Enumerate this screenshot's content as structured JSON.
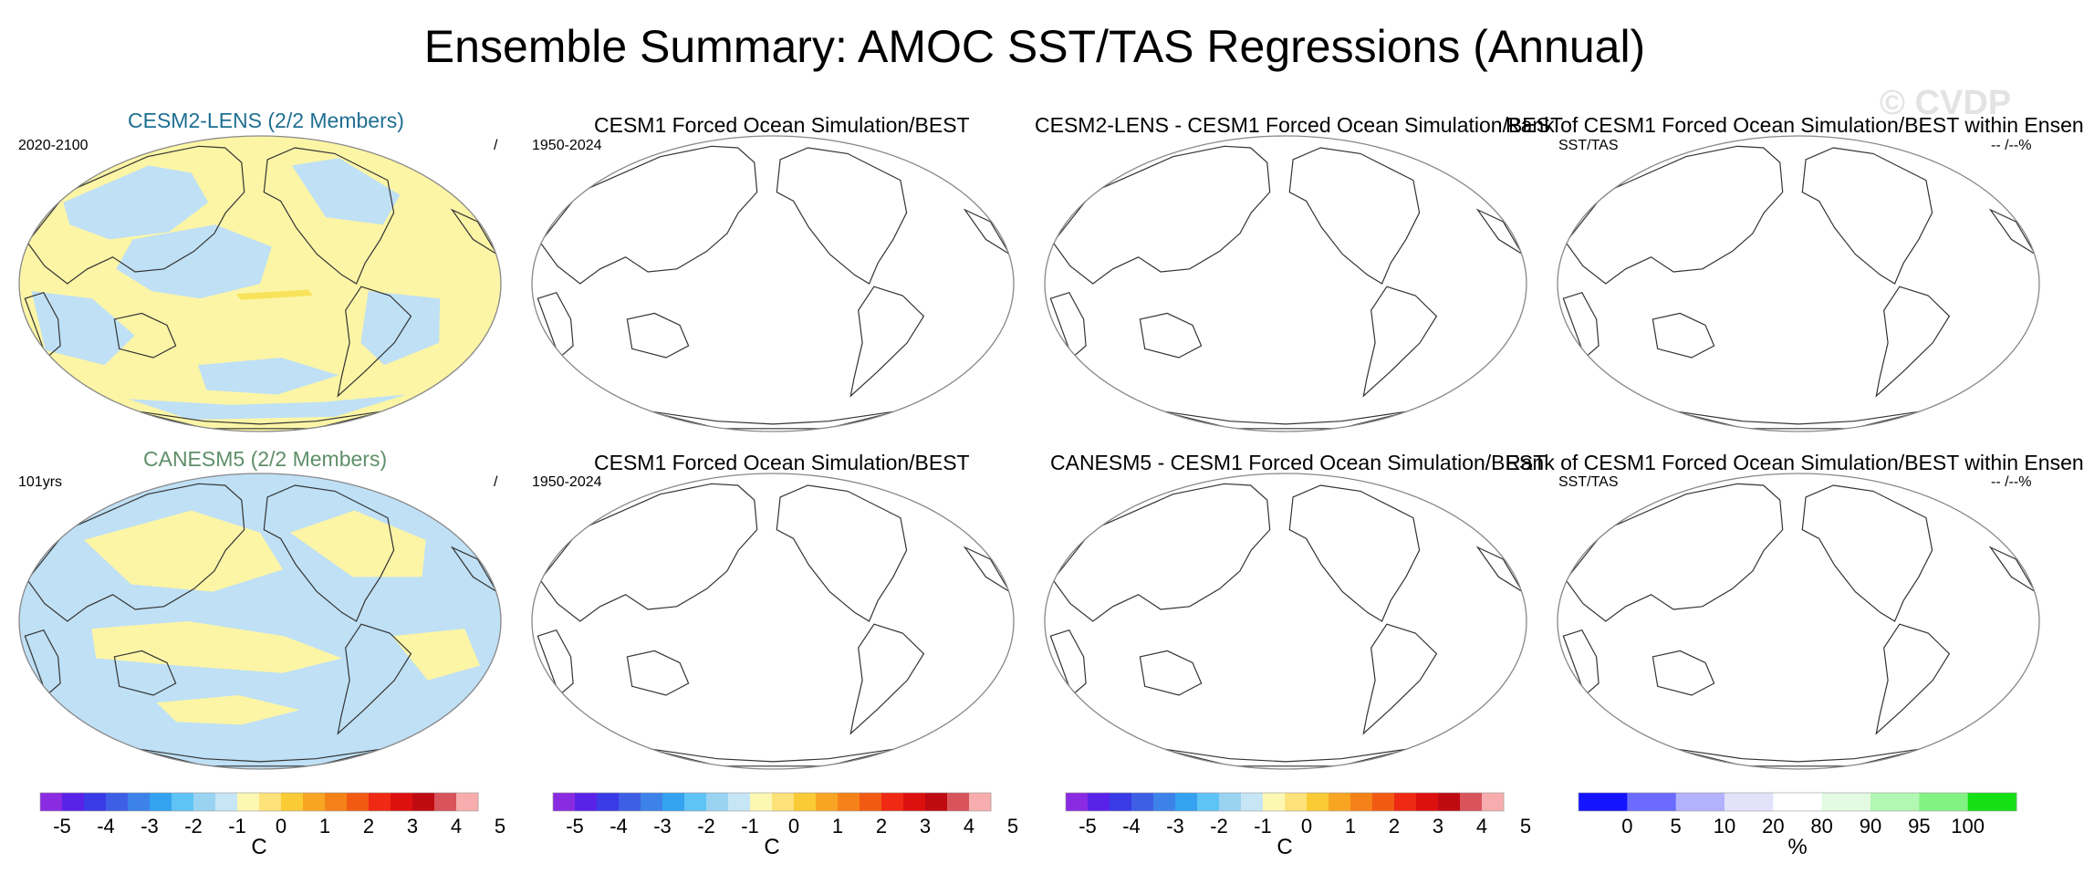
{
  "title": "Ensemble Summary: AMOC SST/TAS Regressions (Annual)",
  "watermark": "© CVDP",
  "colors": {
    "cool": "#bfe0f5",
    "warm": "#fcf5a6",
    "warm_strong": "#f7e25a",
    "coast": "#333333",
    "frame": "#888888",
    "row1_title": "#1f6f91",
    "row2_title": "#5f8f6a"
  },
  "rows": [
    {
      "panels": [
        {
          "title": "CESM2-LENS (2/2 Members)",
          "left_text": "2020-2100",
          "right_text": "/",
          "filled": true
        },
        {
          "title": "CESM1 Forced Ocean Simulation/BEST",
          "left_text": "1950-2024",
          "right_text": "",
          "filled": false
        },
        {
          "title": "CESM2-LENS - CESM1 Forced Ocean Simulation/BEST",
          "left_text": "",
          "right_text": "",
          "filled": false
        },
        {
          "title": "Rank of CESM1 Forced Ocean Simulation/BEST within Ensen",
          "left_text": "SST/TAS",
          "right_text": "-- /--%",
          "filled": false
        }
      ]
    },
    {
      "panels": [
        {
          "title": "CANESM5 (2/2 Members)",
          "left_text": "101yrs",
          "right_text": "/",
          "filled": true
        },
        {
          "title": "CESM1 Forced Ocean Simulation/BEST",
          "left_text": "1950-2024",
          "right_text": "",
          "filled": false
        },
        {
          "title": "CANESM5 - CESM1 Forced Ocean Simulation/BEST",
          "left_text": "",
          "right_text": "",
          "filled": false
        },
        {
          "title": "Rank of CESM1 Forced Ocean Simulation/BEST within Ensen",
          "left_text": "SST/TAS",
          "right_text": "-- /--%",
          "filled": false
        }
      ]
    }
  ],
  "colorbar_regression": {
    "units": "C",
    "labels": [
      "-5",
      "-4",
      "-3",
      "-2",
      "-1",
      "0",
      "1",
      "2",
      "3",
      "4",
      "5"
    ],
    "colors": [
      "#8a2be2",
      "#5a22e8",
      "#3a3ae6",
      "#3e5ee6",
      "#3d82e8",
      "#35a2f0",
      "#5ec4f5",
      "#9ad3f2",
      "#c6e5f5",
      "#fdf7b4",
      "#fde27a",
      "#fbcb36",
      "#f7a523",
      "#f58218",
      "#f25a14",
      "#ee2a14",
      "#dd1010",
      "#c00a12",
      "#d8545a",
      "#f7adad"
    ]
  },
  "colorbar_rank": {
    "units": "%",
    "labels": [
      "0",
      "5",
      "10",
      "20",
      "80",
      "90",
      "95",
      "100"
    ],
    "colors": [
      "#1414ff",
      "#6b6bff",
      "#b2b2ff",
      "#e2e2fb",
      "#ffffff",
      "#e2fbe2",
      "#b2f7b2",
      "#82f382",
      "#14e014"
    ]
  },
  "chart_data": [
    {
      "type": "map",
      "title": "CESM2-LENS (2/2 Members)",
      "period": "2020-2100",
      "units": "C",
      "range": [
        -5,
        5
      ],
      "field": "AMOC SST/TAS regression"
    },
    {
      "type": "map",
      "title": "CESM1 Forced Ocean Simulation/BEST",
      "period": "1950-2024",
      "units": "C",
      "range": [
        -5,
        5
      ],
      "field": "empty"
    },
    {
      "type": "map",
      "title": "CESM2-LENS - CESM1 Forced Ocean Simulation/BEST",
      "units": "C",
      "range": [
        -5,
        5
      ],
      "field": "empty"
    },
    {
      "type": "map",
      "title": "Rank of CESM1 Forced Ocean Simulation/BEST within Ensen",
      "units": "%",
      "field": "empty"
    },
    {
      "type": "map",
      "title": "CANESM5 (2/2 Members)",
      "period": "101yrs",
      "units": "C",
      "range": [
        -5,
        5
      ],
      "field": "AMOC SST/TAS regression"
    },
    {
      "type": "map",
      "title": "CESM1 Forced Ocean Simulation/BEST",
      "period": "1950-2024",
      "units": "C",
      "range": [
        -5,
        5
      ],
      "field": "empty"
    },
    {
      "type": "map",
      "title": "CANESM5 - CESM1 Forced Ocean Simulation/BEST",
      "units": "C",
      "range": [
        -5,
        5
      ],
      "field": "empty"
    },
    {
      "type": "map",
      "title": "Rank of CESM1 Forced Ocean Simulation/BEST within Ensen",
      "units": "%",
      "field": "empty"
    }
  ]
}
